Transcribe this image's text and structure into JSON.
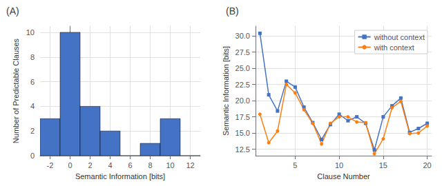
{
  "chart_data": [
    {
      "type": "histogram",
      "title": "(A)",
      "bins": [
        -3,
        -1,
        1,
        3,
        5,
        7,
        9,
        11,
        13
      ],
      "values": [
        3,
        10,
        4,
        2,
        0,
        1,
        3,
        0
      ],
      "color": "#4472c4",
      "xlabel": "Semantic Information [bits]",
      "ylabel": "Number of Predictable Clauses",
      "xlim": [
        -3,
        13
      ],
      "xticks": [
        -2,
        0,
        2,
        4,
        6,
        8,
        10,
        12
      ],
      "ylim": [
        0,
        10.5
      ],
      "yticks": [
        0,
        2,
        4,
        6,
        8,
        10
      ],
      "grid": true
    },
    {
      "type": "line",
      "title": "(B)",
      "x": [
        1,
        2,
        3,
        4,
        5,
        6,
        7,
        8,
        9,
        10,
        11,
        12,
        13,
        14,
        15,
        16,
        17,
        18,
        19,
        20
      ],
      "series": [
        {
          "name": "without context",
          "color": "#4472c4",
          "marker": "square",
          "values": [
            30.4,
            20.9,
            18.4,
            23.0,
            22.1,
            19.0,
            16.6,
            14.0,
            16.3,
            17.9,
            16.9,
            17.5,
            16.5,
            12.4,
            17.5,
            19.2,
            20.4,
            15.1,
            15.7,
            16.5
          ]
        },
        {
          "name": "with context",
          "color": "#ff7f0e",
          "marker": "circle",
          "values": [
            17.9,
            13.5,
            15.3,
            22.5,
            21.2,
            18.6,
            16.5,
            13.3,
            16.5,
            17.5,
            17.5,
            16.7,
            16.6,
            11.8,
            14.1,
            18.9,
            19.9,
            14.9,
            15.0,
            16.1
          ]
        }
      ],
      "xlabel": "Clause Number",
      "ylabel": "Semantic Information [bits]",
      "xlim": [
        0.5,
        20.5
      ],
      "xticks": [
        5,
        10,
        15,
        20
      ],
      "ylim": [
        11.5,
        31.5
      ],
      "yticks": [
        12.5,
        {
          "value": 15,
          "label": "15.0"
        },
        17.5,
        {
          "value": 20,
          "label": "20.0"
        },
        22.5,
        {
          "value": 25,
          "label": "25.0"
        },
        27.5,
        {
          "value": 30,
          "label": "30.0"
        }
      ],
      "grid": true,
      "legend": "upper right"
    }
  ]
}
